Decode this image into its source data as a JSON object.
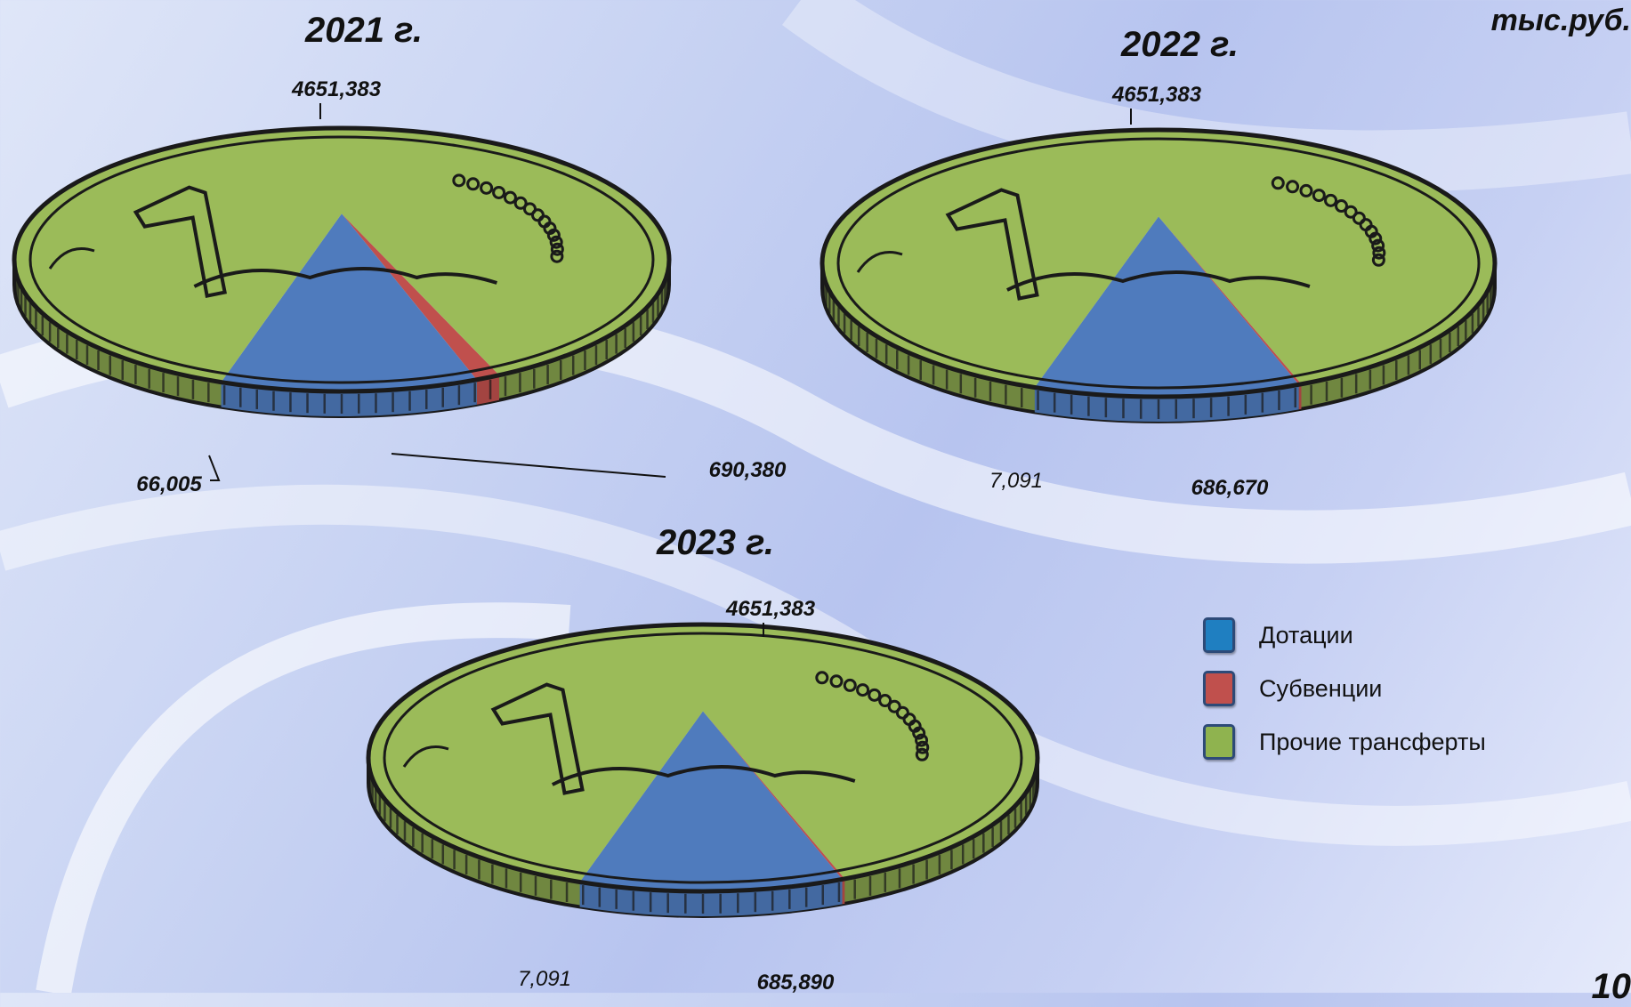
{
  "unit_label": "тыс.руб.",
  "page_number": "10",
  "colors": {
    "dotations": "#4f7bbd",
    "subventions": "#c0504d",
    "other": "#9bbb59",
    "coin_outline": "#1a1a1a"
  },
  "legend": [
    {
      "label": "Дотации",
      "color": "#1f7fc1"
    },
    {
      "label": "Субвенции",
      "color": "#c0504d"
    },
    {
      "label": "Прочие трансферты",
      "color": "#8fb34f"
    }
  ],
  "chart_data": [
    {
      "type": "pie",
      "title": "2021 г.",
      "series": [
        {
          "name": "Дотации",
          "value": 690.38,
          "label": "690,380"
        },
        {
          "name": "Субвенции",
          "value": 66.005,
          "label": "66,005"
        },
        {
          "name": "Прочие трансферты",
          "value": 4651.383,
          "label": "4651,383"
        }
      ]
    },
    {
      "type": "pie",
      "title": "2022 г.",
      "series": [
        {
          "name": "Дотации",
          "value": 686.67,
          "label": "686,670"
        },
        {
          "name": "Субвенции",
          "value": 7.091,
          "label": "7,091"
        },
        {
          "name": "Прочие трансферты",
          "value": 4651.383,
          "label": "4651,383"
        }
      ]
    },
    {
      "type": "pie",
      "title": "2023 г.",
      "series": [
        {
          "name": "Дотации",
          "value": 685.89,
          "label": "685,890"
        },
        {
          "name": "Субвенции",
          "value": 7.091,
          "label": "7,091"
        },
        {
          "name": "Прочие трансферты",
          "value": 4651.383,
          "label": "4651,383"
        }
      ]
    }
  ]
}
